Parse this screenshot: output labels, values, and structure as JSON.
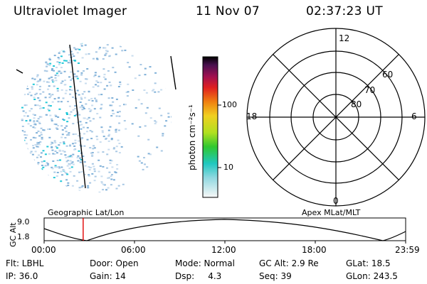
{
  "header": {
    "title": "Ultraviolet Imager",
    "date": "11 Nov 07",
    "time": "02:37:23 UT"
  },
  "colorbar": {
    "label": "photon cm⁻²s⁻¹",
    "ticks": [
      "100",
      "10"
    ]
  },
  "polar": {
    "mlt_labels": {
      "top": "12",
      "bottom": "0",
      "left": "18",
      "right": "6"
    },
    "lat_labels": [
      "60",
      "70",
      "80"
    ]
  },
  "timeline": {
    "ylabel": "GC Alt",
    "yticks": [
      "9.0",
      "1.8"
    ],
    "left_title": "Geographic Lat/Lon",
    "right_title": "Apex MLat/MLT",
    "xticks": [
      "00:00",
      "06:00",
      "12:00",
      "18:00",
      "23:59"
    ],
    "current_time_fraction": 0.108
  },
  "footer": {
    "row1": [
      "Flt: LBHL",
      "Door: Open",
      "Mode: Normal",
      "GC Alt: 2.9 Re",
      "GLat:  18.5"
    ],
    "row2": [
      "IP: 36.0",
      "Gain: 14",
      "Dsp:     4.3",
      "Seq: 39",
      "GLon: 243.5"
    ]
  },
  "colors": {
    "marker": "#e00000",
    "dots": "#7fb0d8",
    "dots_accent": "#20c8d8"
  }
}
